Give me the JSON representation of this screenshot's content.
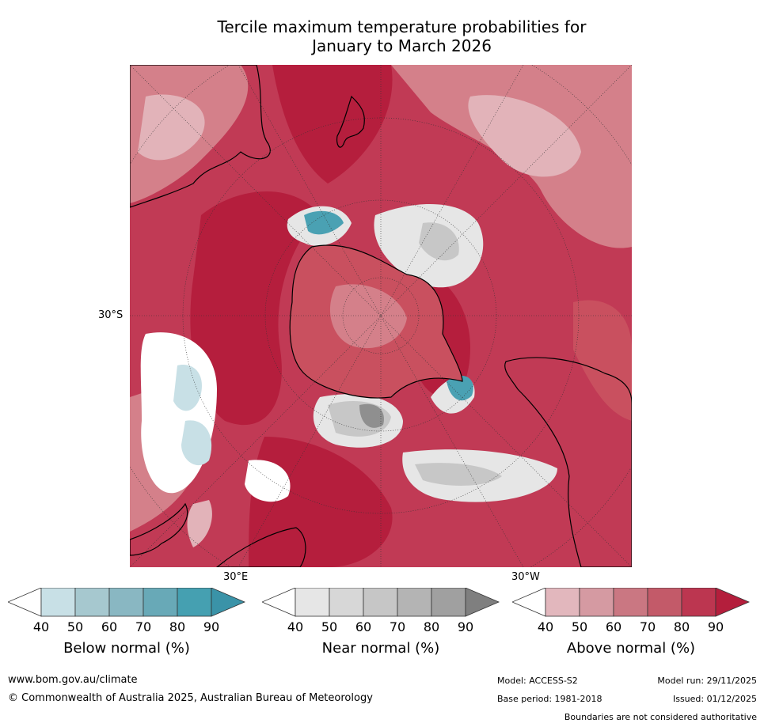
{
  "title": {
    "line1": "Tercile maximum temperature probabilities for",
    "line2": "January to March 2026"
  },
  "map": {
    "lat_label": "30°S",
    "lon_label_east": "30°E",
    "lon_label_west": "30°W",
    "colors": {
      "background_red": "#c13a55",
      "deep_red": "#b51e3d",
      "mid_red": "#c9505f",
      "pink": "#d4808a",
      "light_pink": "#e2b3b9",
      "white": "#ffffff",
      "light_grey": "#e6e6e6",
      "grey": "#c7c7c7",
      "dark_grey": "#8f8f8f",
      "light_blue": "#c8e0e6",
      "blue": "#4aa1b3"
    }
  },
  "legends": [
    {
      "title": "Below normal (%)",
      "ticks": [
        "40",
        "50",
        "60",
        "70",
        "80",
        "90"
      ],
      "colors": [
        "#ffffff",
        "#c8e0e6",
        "#a6c8cf",
        "#89b7c2",
        "#68a9b7",
        "#45a0b1",
        "#3a93a8"
      ]
    },
    {
      "title": "Near normal (%)",
      "ticks": [
        "40",
        "50",
        "60",
        "70",
        "80",
        "90"
      ],
      "colors": [
        "#ffffff",
        "#e6e6e6",
        "#d7d7d7",
        "#c6c6c6",
        "#b4b4b4",
        "#a0a0a0",
        "#7f7f7f"
      ]
    },
    {
      "title": "Above normal (%)",
      "ticks": [
        "40",
        "50",
        "60",
        "70",
        "80",
        "90"
      ],
      "colors": [
        "#ffffff",
        "#e2b7bd",
        "#d59aa2",
        "#ca7782",
        "#c35a69",
        "#bc3650",
        "#b41e3c"
      ]
    }
  ],
  "footer": {
    "website": "www.bom.gov.au/climate",
    "copyright": "© Commonwealth of Australia 2025, Australian Bureau of Meteorology",
    "model": "Model: ACCESS-S2",
    "model_run": "Model run: 29/11/2025",
    "base_period": "Base period: 1981-2018",
    "issued": "Issued: 01/12/2025",
    "disclaimer": "Boundaries are not considered authoritative"
  }
}
